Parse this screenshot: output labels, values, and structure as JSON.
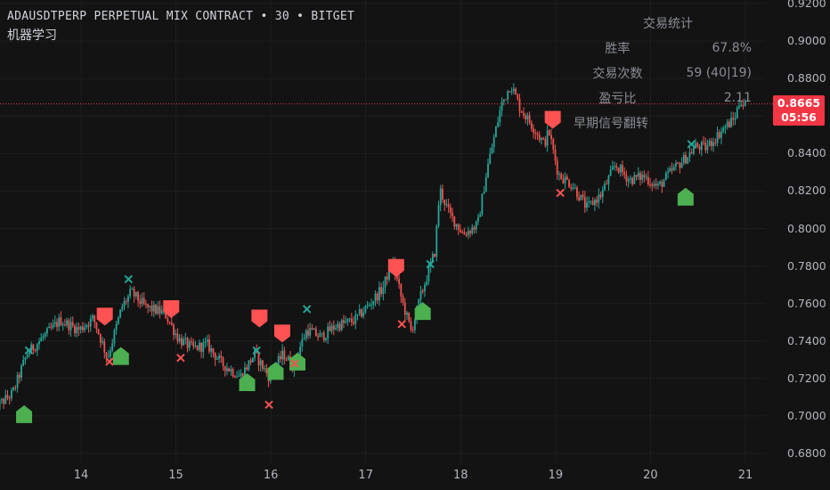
{
  "header": {
    "symbol": "ADAUSDTPERP PERPETUAL MIX CONTRACT",
    "sep1": "•",
    "interval": "30",
    "sep2": "•",
    "exchange": "BITGET"
  },
  "indicator_name": "机器学习",
  "stats": {
    "title": "交易统计",
    "rows": [
      {
        "label": "胜率",
        "value": "67.8%"
      },
      {
        "label": "交易次数",
        "value": "59 (40|19)"
      },
      {
        "label": "盈亏比",
        "value": "2.11"
      }
    ],
    "extra": "早期信号翻转"
  },
  "last_price": {
    "value": "0.8665",
    "countdown": "05:56"
  },
  "colors": {
    "up": "#26a69a",
    "down": "#ef5350",
    "buy_marker": "#4caf50",
    "sell_marker": "#ff5252",
    "background": "#131313"
  },
  "chart_data": {
    "type": "candlestick",
    "symbol": "ADAUSDTPERP",
    "y_axis_ticks": [
      "0.9200",
      "0.9000",
      "0.8800",
      "0.8600",
      "0.8400",
      "0.8200",
      "0.8000",
      "0.7800",
      "0.7600",
      "0.7400",
      "0.7200",
      "0.7000",
      "0.6800"
    ],
    "x_axis_ticks": [
      "14",
      "15",
      "16",
      "17",
      "18",
      "19",
      "20",
      "21"
    ],
    "ylim": [
      0.675,
      0.922
    ],
    "xlim": [
      13.08,
      21.05
    ],
    "last_price": 0.8665,
    "price_path": [
      [
        13.08,
        0.703
      ],
      [
        13.3,
        0.712
      ],
      [
        13.45,
        0.733
      ],
      [
        13.6,
        0.741
      ],
      [
        13.8,
        0.751
      ],
      [
        14.0,
        0.746
      ],
      [
        14.15,
        0.752
      ],
      [
        14.3,
        0.731
      ],
      [
        14.45,
        0.758
      ],
      [
        14.55,
        0.766
      ],
      [
        14.7,
        0.758
      ],
      [
        14.9,
        0.755
      ],
      [
        15.05,
        0.741
      ],
      [
        15.2,
        0.736
      ],
      [
        15.35,
        0.738
      ],
      [
        15.5,
        0.728
      ],
      [
        15.7,
        0.721
      ],
      [
        15.85,
        0.733
      ],
      [
        16.0,
        0.721
      ],
      [
        16.15,
        0.733
      ],
      [
        16.25,
        0.727
      ],
      [
        16.4,
        0.746
      ],
      [
        16.55,
        0.742
      ],
      [
        16.7,
        0.748
      ],
      [
        16.9,
        0.751
      ],
      [
        17.05,
        0.759
      ],
      [
        17.2,
        0.768
      ],
      [
        17.3,
        0.783
      ],
      [
        17.4,
        0.762
      ],
      [
        17.5,
        0.745
      ],
      [
        17.6,
        0.764
      ],
      [
        17.75,
        0.788
      ],
      [
        17.8,
        0.821
      ],
      [
        17.9,
        0.808
      ],
      [
        18.05,
        0.797
      ],
      [
        18.2,
        0.802
      ],
      [
        18.3,
        0.832
      ],
      [
        18.45,
        0.866
      ],
      [
        18.55,
        0.877
      ],
      [
        18.65,
        0.864
      ],
      [
        18.8,
        0.853
      ],
      [
        18.9,
        0.845
      ],
      [
        18.95,
        0.852
      ],
      [
        19.05,
        0.829
      ],
      [
        19.2,
        0.823
      ],
      [
        19.35,
        0.811
      ],
      [
        19.5,
        0.818
      ],
      [
        19.65,
        0.834
      ],
      [
        19.8,
        0.826
      ],
      [
        19.95,
        0.828
      ],
      [
        20.1,
        0.822
      ],
      [
        20.25,
        0.831
      ],
      [
        20.4,
        0.838
      ],
      [
        20.5,
        0.844
      ],
      [
        20.6,
        0.843
      ],
      [
        20.7,
        0.848
      ],
      [
        20.8,
        0.854
      ],
      [
        20.9,
        0.858
      ],
      [
        20.97,
        0.869
      ],
      [
        21.0,
        0.866
      ]
    ],
    "buy_signals": [
      [
        13.4,
        0.701
      ],
      [
        14.42,
        0.732
      ],
      [
        15.75,
        0.718
      ],
      [
        16.05,
        0.724
      ],
      [
        16.28,
        0.729
      ],
      [
        17.6,
        0.756
      ],
      [
        20.37,
        0.817
      ]
    ],
    "sell_signals": [
      [
        14.25,
        0.753
      ],
      [
        14.95,
        0.757
      ],
      [
        15.88,
        0.752
      ],
      [
        16.12,
        0.744
      ],
      [
        17.32,
        0.779
      ],
      [
        18.97,
        0.858
      ]
    ],
    "exit_long_marks": [
      [
        13.45,
        0.735
      ],
      [
        14.5,
        0.773
      ],
      [
        15.85,
        0.735
      ],
      [
        16.38,
        0.757
      ],
      [
        17.68,
        0.781
      ],
      [
        20.43,
        0.845
      ]
    ],
    "exit_short_marks": [
      [
        14.3,
        0.729
      ],
      [
        15.05,
        0.731
      ],
      [
        15.98,
        0.706
      ],
      [
        16.25,
        0.728
      ],
      [
        17.38,
        0.749
      ],
      [
        19.05,
        0.819
      ]
    ]
  }
}
